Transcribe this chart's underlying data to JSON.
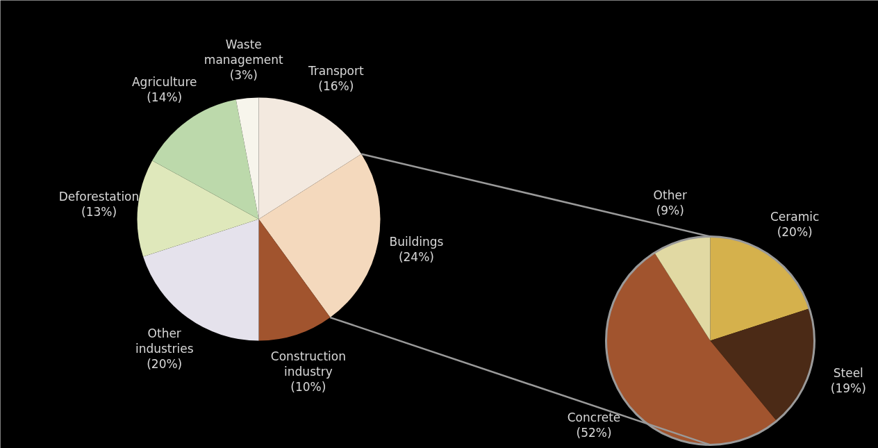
{
  "chart_data": [
    {
      "type": "pie",
      "categories": [
        "Transport",
        "Buildings",
        "Construction industry",
        "Other industries",
        "Deforestation",
        "Agriculture",
        "Waste management"
      ],
      "values": [
        16,
        24,
        10,
        20,
        13,
        14,
        3
      ],
      "colors": [
        "#f3e9df",
        "#f4d9bd",
        "#a1542e",
        "#e5e2ec",
        "#dfe8bb",
        "#bcd9ab",
        "#f7f5ec"
      ],
      "value_labels": [
        "(16%)",
        "(24%)",
        "(10%)",
        "(20%)",
        "(13%)",
        "(14%)",
        "(3%)"
      ]
    },
    {
      "type": "pie",
      "categories": [
        "Ceramic",
        "Steel",
        "Concrete",
        "Other"
      ],
      "values": [
        20,
        19,
        52,
        9
      ],
      "colors": [
        "#d5b14c",
        "#4b2a16",
        "#a1542e",
        "#e1d9a3"
      ],
      "value_labels": [
        "(20%)",
        "(19%)",
        "(52%)",
        "(9%)"
      ]
    }
  ]
}
